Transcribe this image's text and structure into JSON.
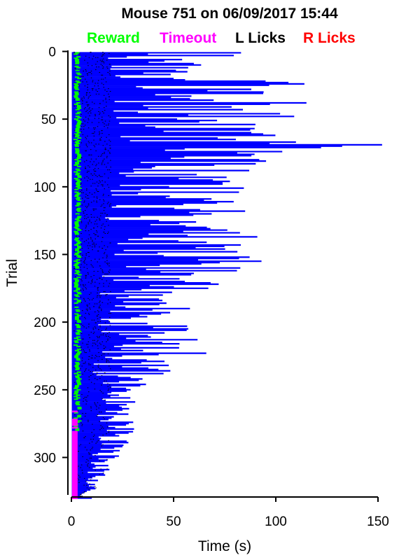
{
  "chart_data": {
    "type": "raster",
    "title": "Mouse 751 on 06/09/2017 15:44",
    "legend": [
      {
        "label": "Reward",
        "color": "#00ff00"
      },
      {
        "label": "Timeout",
        "color": "#ff00ff"
      },
      {
        "label": "L Licks",
        "color": "#000000"
      },
      {
        "label": "R Licks",
        "color": "#ff0000"
      }
    ],
    "legend_placement": "top",
    "xlabel": "Time (s)",
    "ylabel": "Trial",
    "xlim": [
      0,
      152
    ],
    "ylim": [
      330,
      0
    ],
    "x_ticks": [
      0,
      50,
      100,
      150
    ],
    "y_ticks": [
      0,
      50,
      100,
      150,
      200,
      250,
      300
    ],
    "trial_line_color": "#0000ff",
    "n_trials": 330,
    "trial_end_times_sample": [
      {
        "trial": 1,
        "end": 83
      },
      {
        "trial": 20,
        "end": 50
      },
      {
        "trial": 22,
        "end": 95
      },
      {
        "trial": 24,
        "end": 114
      },
      {
        "trial": 28,
        "end": 88
      },
      {
        "trial": 38,
        "end": 115
      },
      {
        "trial": 48,
        "end": 109
      },
      {
        "trial": 60,
        "end": 88
      },
      {
        "trial": 69,
        "end": 152
      },
      {
        "trial": 88,
        "end": 87
      },
      {
        "trial": 104,
        "end": 82
      },
      {
        "trial": 118,
        "end": 85
      },
      {
        "trial": 155,
        "end": 93
      },
      {
        "trial": 162,
        "end": 81
      },
      {
        "trial": 175,
        "end": 67
      },
      {
        "trial": 190,
        "end": 58
      },
      {
        "trial": 223,
        "end": 66
      },
      {
        "trial": 250,
        "end": 29
      },
      {
        "trial": 282,
        "end": 28
      },
      {
        "trial": 330,
        "end": 10
      }
    ],
    "reward_trials_range": [
      1,
      280
    ],
    "timeout_trials_range": [
      265,
      330
    ],
    "grid": false
  }
}
